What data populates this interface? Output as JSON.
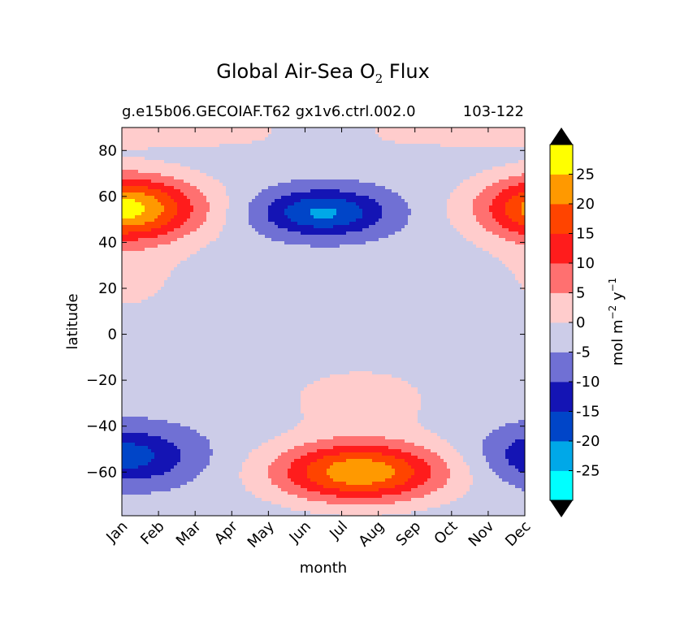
{
  "chart_data": {
    "type": "contour",
    "title": "Global Air-Sea O",
    "title_subscript": "2",
    "title_suffix": " Flux",
    "subtitle_left": "g.e15b06.GECOIAF.T62 gx1v6.ctrl.002.0",
    "subtitle_right": "103-122",
    "xlabel": "month",
    "ylabel": "latitude",
    "x_categories": [
      "Jan",
      "Feb",
      "Mar",
      "Apr",
      "May",
      "Jun",
      "Jul",
      "Aug",
      "Sep",
      "Oct",
      "Nov",
      "Dec"
    ],
    "ylim": [
      -79,
      90
    ],
    "y_ticks": [
      "−60",
      "−40",
      "−20",
      "0",
      "20",
      "40",
      "60",
      "80"
    ],
    "y_tick_values": [
      -60,
      -40,
      -20,
      0,
      20,
      40,
      60,
      80
    ],
    "colorbar": {
      "label": "mol m",
      "label_exp1": "−2",
      "label_mid": "  y",
      "label_exp2": "−1",
      "tick_labels": [
        "-25",
        "-20",
        "-15",
        "-10",
        "-5",
        "0",
        "5",
        "10",
        "15",
        "20",
        "25"
      ],
      "levels": [
        -30,
        -25,
        -20,
        -15,
        -10,
        -5,
        0,
        5,
        10,
        15,
        20,
        25,
        30
      ],
      "colors": [
        "#00ffff",
        "#00a8e8",
        "#0045c8",
        "#1414b4",
        "#7070d4",
        "#cccce8",
        "#ffcccc",
        "#ff7070",
        "#ff1c1c",
        "#ff4400",
        "#ff9900",
        "#ffff00"
      ],
      "under_color": "#000000",
      "over_color": "#000000"
    }
  }
}
